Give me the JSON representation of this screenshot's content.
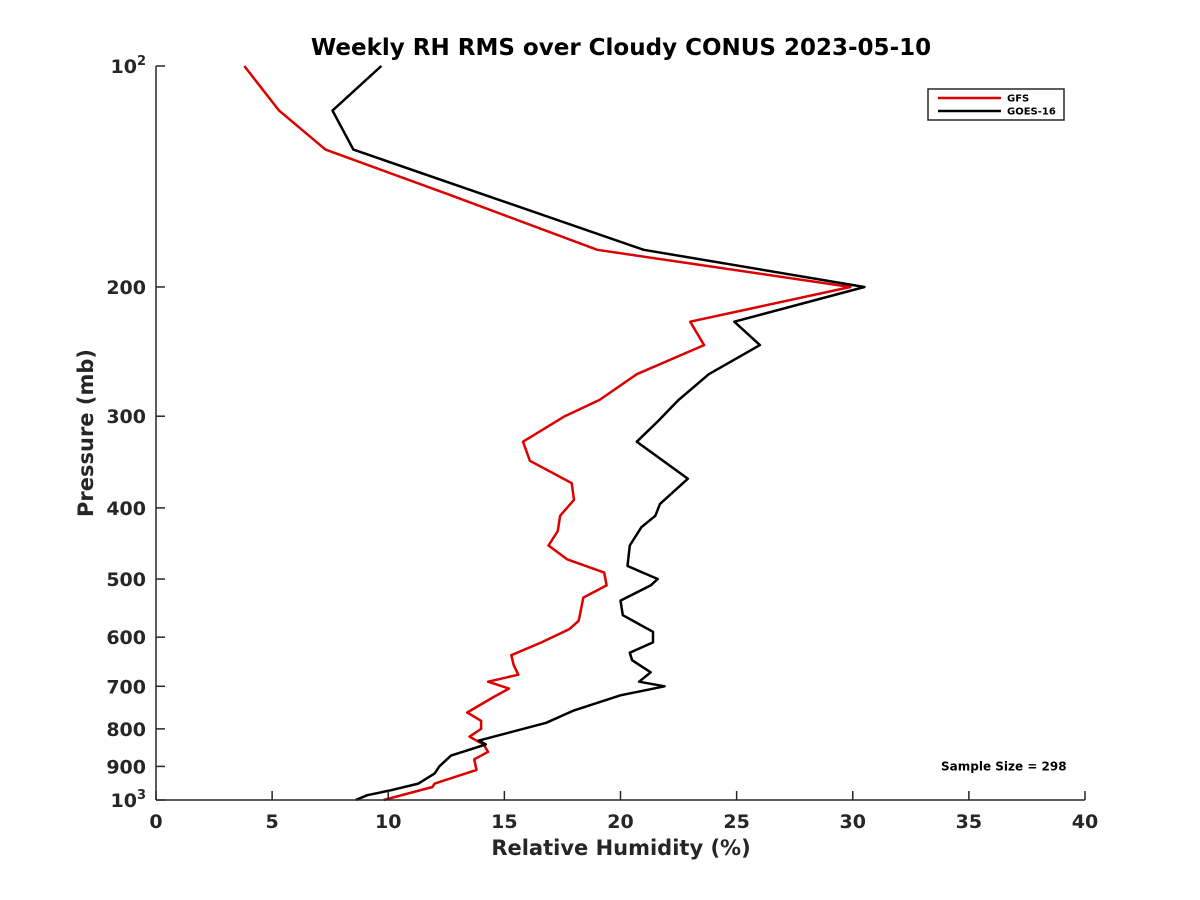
{
  "chart_data": {
    "type": "line",
    "title": "Weekly RH RMS over Cloudy CONUS 2023-05-10",
    "xlabel": "Relative Humidity (%)",
    "ylabel": "Pressure (mb)",
    "xlim": [
      0,
      40
    ],
    "ylim": [
      1000,
      100
    ],
    "y_scale": "log",
    "y_reversed": true,
    "x_ticks": [
      0,
      5,
      10,
      15,
      20,
      25,
      30,
      35,
      40
    ],
    "x_tick_labels": [
      "0",
      "5",
      "10",
      "15",
      "20",
      "25",
      "30",
      "35",
      "40"
    ],
    "y_ticks": [
      100,
      200,
      300,
      400,
      500,
      600,
      700,
      800,
      900,
      1000
    ],
    "y_tick_labels": [
      {
        "base": "10",
        "exp": "2"
      },
      {
        "base": "200"
      },
      {
        "base": "300"
      },
      {
        "base": "400"
      },
      {
        "base": "500"
      },
      {
        "base": "600"
      },
      {
        "base": "700"
      },
      {
        "base": "800"
      },
      {
        "base": "900"
      },
      {
        "base": "10",
        "exp": "3"
      }
    ],
    "grid": false,
    "legend_position": "top-right",
    "series": [
      {
        "name": "GFS",
        "color": "#dd0000",
        "points": [
          [
            3.8,
            100
          ],
          [
            5.3,
            115
          ],
          [
            7.3,
            130
          ],
          [
            12.7,
            150
          ],
          [
            19.0,
            178
          ],
          [
            29.9,
            200
          ],
          [
            23.0,
            223
          ],
          [
            23.6,
            240
          ],
          [
            20.7,
            263
          ],
          [
            19.1,
            285
          ],
          [
            17.6,
            300
          ],
          [
            15.8,
            325
          ],
          [
            16.1,
            345
          ],
          [
            17.9,
            370
          ],
          [
            18.0,
            390
          ],
          [
            17.4,
            410
          ],
          [
            17.3,
            430
          ],
          [
            16.9,
            450
          ],
          [
            17.7,
            470
          ],
          [
            19.3,
            490
          ],
          [
            19.4,
            510
          ],
          [
            18.4,
            530
          ],
          [
            18.3,
            550
          ],
          [
            18.2,
            570
          ],
          [
            17.8,
            585
          ],
          [
            16.6,
            610
          ],
          [
            15.3,
            635
          ],
          [
            15.4,
            655
          ],
          [
            15.6,
            675
          ],
          [
            14.3,
            690
          ],
          [
            15.2,
            705
          ],
          [
            14.5,
            725
          ],
          [
            13.4,
            760
          ],
          [
            14.0,
            780
          ],
          [
            14.0,
            800
          ],
          [
            13.5,
            820
          ],
          [
            14.1,
            840
          ],
          [
            14.3,
            860
          ],
          [
            13.7,
            880
          ],
          [
            13.8,
            910
          ],
          [
            12.0,
            950
          ],
          [
            11.9,
            960
          ],
          [
            9.8,
            1000
          ]
        ]
      },
      {
        "name": "GOES-16",
        "color": "#000000",
        "points": [
          [
            9.7,
            100
          ],
          [
            7.6,
            115
          ],
          [
            8.5,
            130
          ],
          [
            14.2,
            150
          ],
          [
            21.0,
            178
          ],
          [
            30.5,
            200
          ],
          [
            24.9,
            223
          ],
          [
            26.0,
            240
          ],
          [
            23.8,
            263
          ],
          [
            22.5,
            285
          ],
          [
            21.6,
            305
          ],
          [
            20.7,
            325
          ],
          [
            22.9,
            365
          ],
          [
            21.7,
            395
          ],
          [
            21.5,
            410
          ],
          [
            20.9,
            425
          ],
          [
            20.4,
            450
          ],
          [
            20.3,
            480
          ],
          [
            21.6,
            500
          ],
          [
            21.3,
            510
          ],
          [
            20.0,
            535
          ],
          [
            20.1,
            560
          ],
          [
            21.4,
            590
          ],
          [
            21.4,
            610
          ],
          [
            20.4,
            630
          ],
          [
            20.5,
            645
          ],
          [
            21.3,
            670
          ],
          [
            20.8,
            690
          ],
          [
            21.9,
            700
          ],
          [
            20.0,
            720
          ],
          [
            18.0,
            755
          ],
          [
            16.8,
            785
          ],
          [
            13.9,
            830
          ],
          [
            14.2,
            840
          ],
          [
            13.7,
            850
          ],
          [
            12.7,
            870
          ],
          [
            12.2,
            900
          ],
          [
            12.0,
            920
          ],
          [
            11.3,
            950
          ],
          [
            10.1,
            970
          ],
          [
            9.1,
            985
          ],
          [
            8.6,
            1000
          ]
        ]
      }
    ],
    "annotations": [
      {
        "text": "Sample Size = 298",
        "x": 33.8,
        "y": 900
      }
    ]
  }
}
